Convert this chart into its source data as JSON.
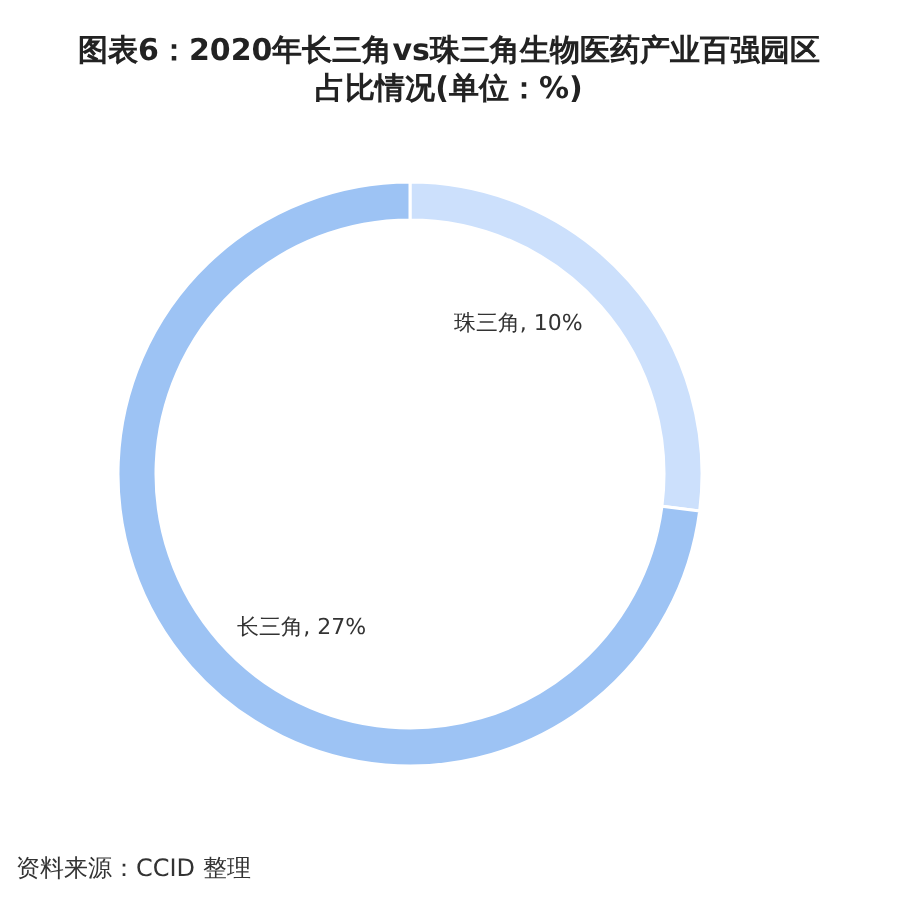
{
  "chart_data": {
    "type": "donut",
    "title": "图表6：2020年长三角vs珠三角生物医药产业百强园区占比情况(单位：%)",
    "categories": [
      "珠三角",
      "长三角"
    ],
    "values": [
      10,
      27
    ],
    "value_labels": [
      "10%",
      "27%"
    ],
    "colors": [
      "#cce0fc",
      "#9dc3f4"
    ],
    "annotations": [
      "资料来源：CCID 整理"
    ]
  }
}
